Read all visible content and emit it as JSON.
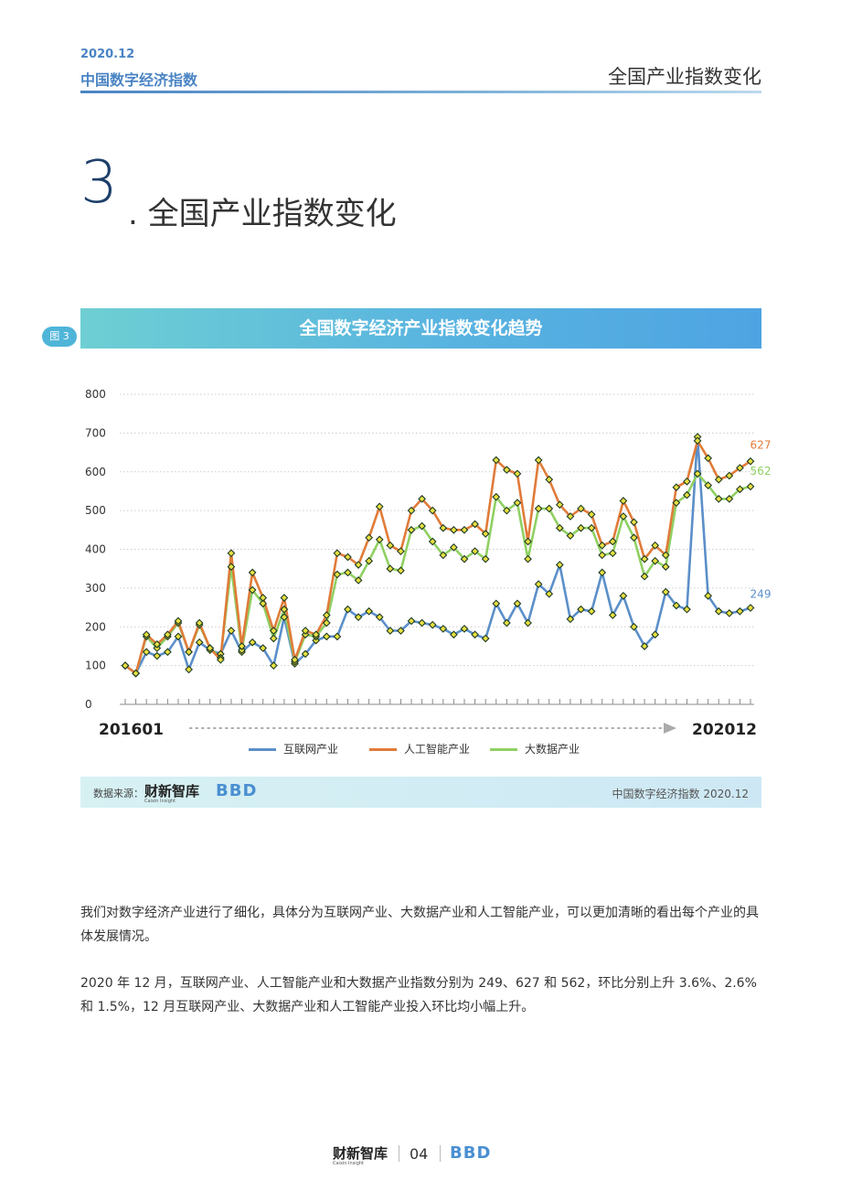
{
  "header": {
    "date": "2020.12",
    "report_title": "中国数字经济指数",
    "section_name": "全国产业指数变化"
  },
  "section": {
    "number": "3",
    "title": ". 全国产业指数变化"
  },
  "figure": {
    "tag": "图 3",
    "title": "全国数字经济产业指数变化趋势"
  },
  "source": {
    "label": "数据来源：",
    "logo_name": "财新智库",
    "logo_sub": "Caixin Insight",
    "logo2": "BBD",
    "right_text": "中国数字经济指数 2020.12"
  },
  "paragraphs": [
    "我们对数字经济产业进行了细化，具体分为互联网产业、大数据产业和人工智能产业，可以更加清晰的看出每个产业的具体发展情况。",
    "2020 年 12 月，互联网产业、人工智能产业和大数据产业指数分别为 249、627 和 562，环比分别上升 3.6%、2.6% 和 1.5%，12 月互联网产业、大数据产业和人工智能产业投入环比均小幅上升。"
  ],
  "footer": {
    "logo_name": "财新智库",
    "logo_sub": "Caixin Insight",
    "page_number": "04",
    "logo2": "BBD"
  },
  "colors": {
    "internet": "#5b8fc9",
    "ai": "#e07b39",
    "bigdata": "#8fd062",
    "marker_fill": "#e8e040",
    "marker_stroke": "#1e3a24"
  },
  "chart_data": {
    "type": "line",
    "x_start_label": "201601",
    "x_end_label": "202012",
    "ylim": [
      0,
      800
    ],
    "yticks": [
      0,
      100,
      200,
      300,
      400,
      500,
      600,
      700,
      800
    ],
    "series": [
      {
        "name": "互联网产业",
        "values": [
          100,
          80,
          135,
          125,
          135,
          175,
          90,
          160,
          140,
          130,
          190,
          135,
          160,
          145,
          100,
          225,
          105,
          130,
          165,
          175,
          175,
          245,
          225,
          240,
          225,
          190,
          190,
          215,
          210,
          205,
          195,
          180,
          195,
          180,
          170,
          260,
          210,
          260,
          210,
          310,
          285,
          360,
          220,
          245,
          240,
          340,
          230,
          280,
          200,
          150,
          180,
          290,
          255,
          245,
          690,
          280,
          240,
          235,
          240,
          249
        ],
        "end_label": "249"
      },
      {
        "name": "人工智能产业",
        "values": [
          100,
          80,
          180,
          155,
          180,
          215,
          135,
          210,
          145,
          115,
          390,
          150,
          340,
          275,
          190,
          275,
          115,
          190,
          180,
          230,
          390,
          380,
          360,
          430,
          510,
          410,
          395,
          500,
          530,
          500,
          455,
          450,
          450,
          465,
          440,
          630,
          605,
          595,
          420,
          630,
          580,
          515,
          485,
          505,
          490,
          410,
          420,
          525,
          470,
          375,
          410,
          385,
          560,
          575,
          680,
          635,
          580,
          590,
          610,
          627
        ],
        "end_label": "627"
      },
      {
        "name": "大数据产业",
        "values": [
          100,
          80,
          175,
          145,
          175,
          210,
          135,
          205,
          145,
          120,
          355,
          140,
          295,
          260,
          170,
          245,
          110,
          180,
          175,
          210,
          335,
          340,
          320,
          370,
          425,
          350,
          345,
          450,
          460,
          420,
          385,
          405,
          375,
          395,
          375,
          535,
          500,
          520,
          375,
          505,
          505,
          455,
          435,
          455,
          455,
          385,
          390,
          485,
          430,
          330,
          370,
          355,
          520,
          540,
          595,
          565,
          530,
          530,
          555,
          562
        ],
        "end_label": "562"
      }
    ]
  }
}
